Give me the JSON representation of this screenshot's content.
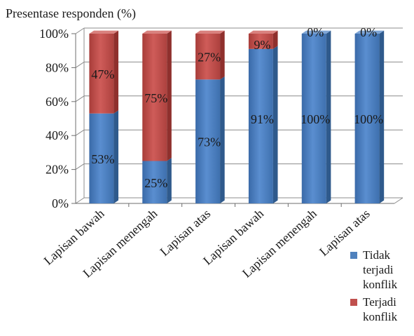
{
  "chart_data": {
    "type": "bar",
    "stacked": true,
    "percent": true,
    "three_d": true,
    "ylabel": "Presentase responden (%)",
    "xlabel": "",
    "ylim": [
      0,
      100
    ],
    "y_ticks": [
      "0%",
      "20%",
      "40%",
      "60%",
      "80%",
      "100%"
    ],
    "grid": true,
    "legend_position": "right",
    "categories": [
      "Lapisan bawah",
      "Lapisan menengah",
      "Lapisan atas",
      "Lapisan bawah",
      "Lapisan menengah",
      "Lapisan atas"
    ],
    "series": [
      {
        "name": "Tidak terjadi konflik",
        "color": "#4f81bd",
        "values": [
          53,
          25,
          73,
          91,
          100,
          100
        ],
        "labels": [
          "53%",
          "25%",
          "73%",
          "91%",
          "100%",
          "100%"
        ]
      },
      {
        "name": "Terjadi konflik",
        "color": "#c0504d",
        "values": [
          47,
          75,
          27,
          9,
          0,
          0
        ],
        "labels": [
          "47%",
          "75%",
          "27%",
          "9%",
          "0%",
          "0%"
        ]
      }
    ]
  }
}
